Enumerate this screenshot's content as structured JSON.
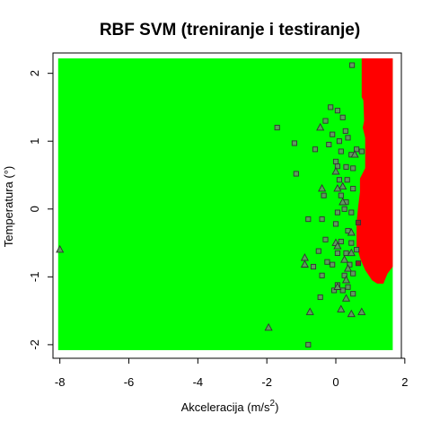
{
  "chart_data": {
    "type": "scatter",
    "title": "RBF SVM (treniranje i testiranje)",
    "xlabel": {
      "prefix": "Akceleracija (m/s",
      "sup": "2",
      "suffix": ")"
    },
    "ylabel": "Temperatura (°)",
    "xlim": [
      -8.2,
      1.9
    ],
    "ylim": [
      -2.2,
      2.3
    ],
    "x_ticks": [
      "-8",
      "-6",
      "-4",
      "-2",
      "0",
      "2"
    ],
    "y_ticks": [
      "-2",
      "-1",
      "0",
      "1",
      "2"
    ],
    "grid": false,
    "colors": {
      "class_a_region": "#00ff00",
      "class_b_region": "#ff0000",
      "marker_edge": "#333333",
      "marker_fill_a": "#5f9a5f",
      "marker_fill_b": "#8a2a2a"
    },
    "decision_region": {
      "x_range": [
        -8.05,
        1.65
      ],
      "y_range": [
        -2.08,
        2.22
      ],
      "class_b_boundary": [
        [
          0.75,
          2.22
        ],
        [
          0.75,
          1.65
        ],
        [
          0.8,
          1.6
        ],
        [
          0.82,
          1.3
        ],
        [
          0.78,
          1.2
        ],
        [
          0.85,
          1.05
        ],
        [
          0.85,
          0.6
        ],
        [
          0.7,
          0.45
        ],
        [
          0.7,
          0.25
        ],
        [
          0.65,
          0.05
        ],
        [
          0.6,
          -0.2
        ],
        [
          0.6,
          -0.55
        ],
        [
          0.72,
          -0.75
        ],
        [
          0.85,
          -0.9
        ],
        [
          1.05,
          -1.05
        ],
        [
          1.2,
          -1.1
        ],
        [
          1.38,
          -1.1
        ],
        [
          1.5,
          -0.95
        ],
        [
          1.65,
          -0.85
        ],
        [
          1.65,
          2.22
        ]
      ]
    },
    "series": [
      {
        "marker": "square",
        "points": [
          [
            0.47,
            2.12
          ],
          [
            -0.15,
            1.5
          ],
          [
            0.05,
            1.45
          ],
          [
            -0.3,
            1.3
          ],
          [
            0.2,
            1.35
          ],
          [
            -1.7,
            1.2
          ],
          [
            0.28,
            1.15
          ],
          [
            0.35,
            1.05
          ],
          [
            -0.1,
            1.1
          ],
          [
            0.1,
            1.0
          ],
          [
            -1.2,
            0.97
          ],
          [
            -0.2,
            0.95
          ],
          [
            0.6,
            0.88
          ],
          [
            0.15,
            0.85
          ],
          [
            0.45,
            0.8
          ],
          [
            -0.6,
            0.88
          ],
          [
            0.75,
            0.85
          ],
          [
            0.0,
            0.7
          ],
          [
            0.3,
            0.62
          ],
          [
            0.05,
            0.63
          ],
          [
            0.5,
            0.6
          ],
          [
            -1.15,
            0.52
          ],
          [
            0.1,
            0.43
          ],
          [
            0.33,
            0.43
          ],
          [
            0.5,
            0.3
          ],
          [
            0.15,
            0.2
          ],
          [
            0.3,
            0.1
          ],
          [
            -0.35,
            0.2
          ],
          [
            0.25,
            0.0
          ],
          [
            0.45,
            -0.05
          ],
          [
            0.05,
            -0.05
          ],
          [
            0.65,
            -0.2
          ],
          [
            -0.4,
            -0.15
          ],
          [
            -0.8,
            -0.15
          ],
          [
            0.0,
            -0.22
          ],
          [
            0.35,
            -0.32
          ],
          [
            -0.3,
            -0.45
          ],
          [
            0.15,
            -0.48
          ],
          [
            0.45,
            -0.5
          ],
          [
            0.6,
            -0.6
          ],
          [
            0.3,
            -0.65
          ],
          [
            0.05,
            -0.65
          ],
          [
            -0.5,
            -0.62
          ],
          [
            0.65,
            -0.8
          ],
          [
            -0.25,
            -0.78
          ],
          [
            0.4,
            -0.82
          ],
          [
            -0.1,
            -0.82
          ],
          [
            -0.65,
            -0.85
          ],
          [
            0.5,
            -0.95
          ],
          [
            0.25,
            -0.98
          ],
          [
            -0.4,
            -0.98
          ],
          [
            0.05,
            -1.12
          ],
          [
            0.35,
            -1.15
          ],
          [
            0.2,
            -1.2
          ],
          [
            -0.05,
            -1.2
          ],
          [
            0.5,
            -1.25
          ],
          [
            -0.45,
            -1.3
          ],
          [
            -0.8,
            -2.0
          ]
        ]
      },
      {
        "marker": "triangle",
        "points": [
          [
            -0.45,
            1.2
          ],
          [
            0.55,
            0.8
          ],
          [
            0.0,
            0.55
          ],
          [
            0.2,
            0.33
          ],
          [
            -0.4,
            0.3
          ],
          [
            0.05,
            0.3
          ],
          [
            0.2,
            0.1
          ],
          [
            0.45,
            -0.35
          ],
          [
            0.0,
            -0.5
          ],
          [
            0.05,
            -0.55
          ],
          [
            0.45,
            -0.65
          ],
          [
            0.25,
            -0.75
          ],
          [
            -0.9,
            -0.72
          ],
          [
            -0.9,
            -0.82
          ],
          [
            0.35,
            -0.88
          ],
          [
            0.3,
            -1.05
          ],
          [
            0.05,
            -1.15
          ],
          [
            0.3,
            -1.32
          ],
          [
            0.15,
            -1.48
          ],
          [
            -0.75,
            -1.52
          ],
          [
            0.75,
            -1.52
          ],
          [
            0.45,
            -1.55
          ],
          [
            -1.95,
            -1.75
          ],
          [
            -8.0,
            -0.6
          ]
        ]
      }
    ]
  }
}
